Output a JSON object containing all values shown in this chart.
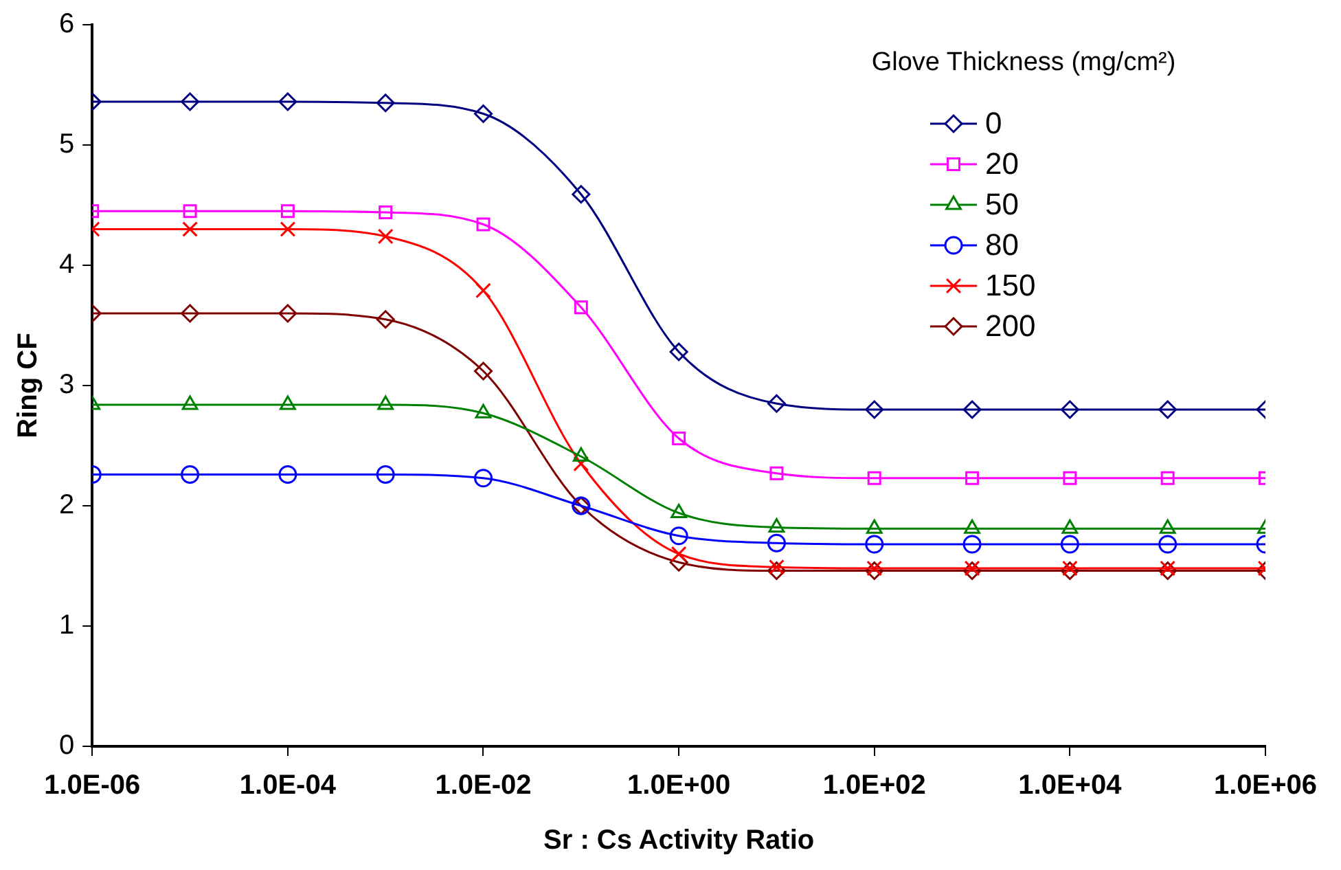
{
  "chart_data": {
    "type": "line",
    "xlabel": "Sr : Cs Activity Ratio",
    "ylabel": "Ring CF",
    "legend_title": "Glove Thickness (mg/cm²)",
    "legend": "top right",
    "log": "x",
    "grid": false,
    "x": [
      1e-06,
      1e-05,
      0.0001,
      0.001,
      0.01,
      0.1,
      1.0,
      10.0,
      100.0,
      1000.0,
      10000.0,
      100000.0,
      1000000.0
    ],
    "xlim": [
      1e-06,
      1000000.0
    ],
    "xticks": [
      {
        "value": 1e-06,
        "label": "1.0E-06"
      },
      {
        "value": 0.0001,
        "label": "1.0E-04"
      },
      {
        "value": 0.01,
        "label": "1.0E-02"
      },
      {
        "value": 1,
        "label": "1.0E+00"
      },
      {
        "value": 100,
        "label": "1.0E+02"
      },
      {
        "value": 10000,
        "label": "1.0E+04"
      },
      {
        "value": 1000000,
        "label": "1.0E+06"
      }
    ],
    "ylim": [
      0,
      6
    ],
    "yticks": [
      0,
      1,
      2,
      3,
      4,
      5,
      6
    ],
    "series": [
      {
        "name": "0",
        "color": "#000080",
        "marker": "diamond",
        "values": [
          5.36,
          5.36,
          5.36,
          5.35,
          5.26,
          4.59,
          3.28,
          2.85,
          2.8,
          2.8,
          2.8,
          2.8,
          2.8
        ]
      },
      {
        "name": "20",
        "color": "#ff00ff",
        "marker": "square",
        "values": [
          4.45,
          4.45,
          4.45,
          4.44,
          4.34,
          3.65,
          2.56,
          2.27,
          2.23,
          2.23,
          2.23,
          2.23,
          2.23
        ]
      },
      {
        "name": "50",
        "color": "#008000",
        "marker": "triangle",
        "values": [
          2.84,
          2.84,
          2.84,
          2.84,
          2.77,
          2.41,
          1.94,
          1.82,
          1.81,
          1.81,
          1.81,
          1.81,
          1.81
        ]
      },
      {
        "name": "80",
        "color": "#0000ff",
        "marker": "circle",
        "values": [
          2.26,
          2.26,
          2.26,
          2.26,
          2.23,
          2.0,
          1.75,
          1.69,
          1.68,
          1.68,
          1.68,
          1.68,
          1.68
        ]
      },
      {
        "name": "150",
        "color": "#ff0000",
        "marker": "cross",
        "values": [
          4.3,
          4.3,
          4.3,
          4.24,
          3.79,
          2.35,
          1.6,
          1.49,
          1.48,
          1.48,
          1.48,
          1.48,
          1.48
        ]
      },
      {
        "name": "200",
        "color": "#800000",
        "marker": "diamond",
        "values": [
          3.6,
          3.6,
          3.6,
          3.55,
          3.12,
          2.0,
          1.53,
          1.46,
          1.46,
          1.46,
          1.46,
          1.46,
          1.46
        ]
      }
    ]
  }
}
